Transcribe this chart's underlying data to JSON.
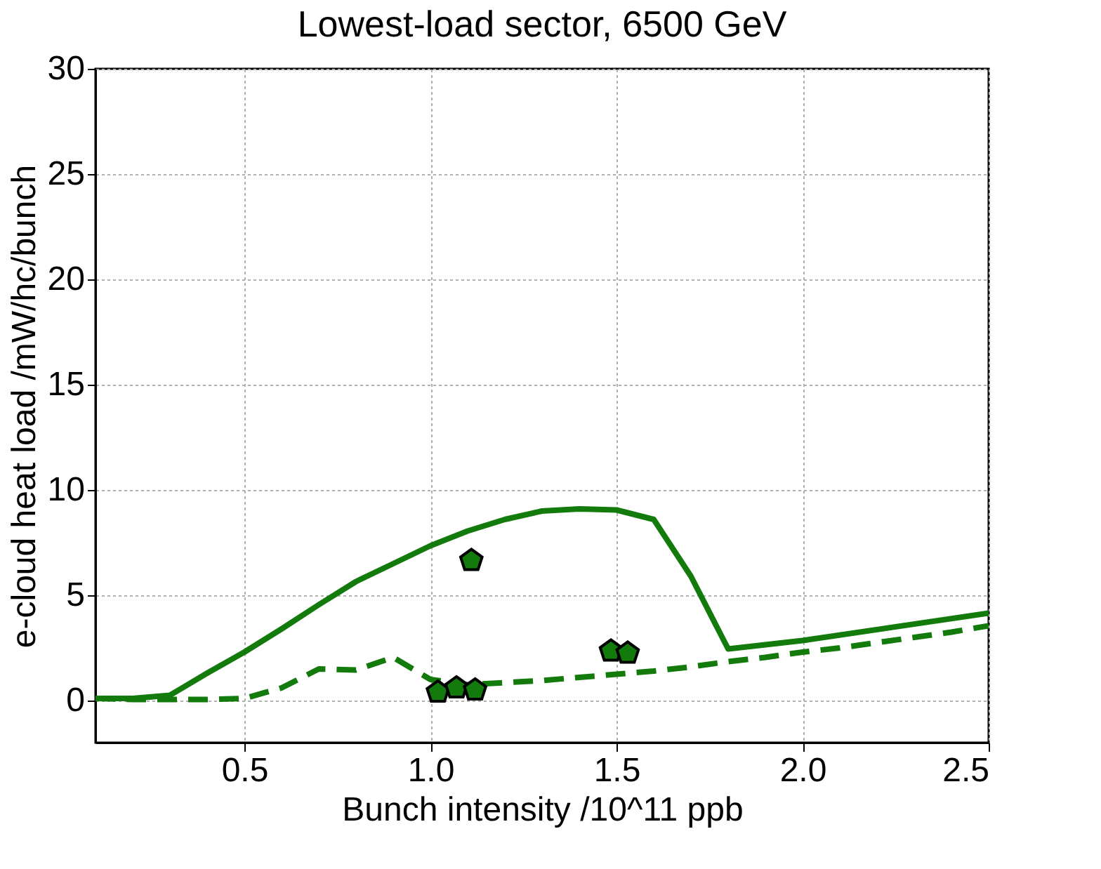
{
  "chart_data": {
    "type": "line",
    "title": "Lowest-load sector, 6500 GeV",
    "xlabel": "Bunch intensity /10^11 ppb",
    "ylabel": "e-cloud heat load /mW/hc/bunch",
    "xlim": [
      0.1,
      2.5
    ],
    "xticks": [
      {
        "value": 0.5,
        "label": "0.5"
      },
      {
        "value": 1.0,
        "label": "1.0"
      },
      {
        "value": 1.5,
        "label": "1.5"
      },
      {
        "value": 2.0,
        "label": "2.0"
      },
      {
        "value": 2.5,
        "label": "2.5"
      }
    ],
    "ylim": [
      -2,
      30
    ],
    "yticks": [
      0,
      5,
      10,
      15,
      20,
      25,
      30
    ],
    "grid": true,
    "legend": false,
    "series": [
      {
        "line_style": "solid",
        "color": "#137a0c",
        "x": [
          0.1,
          0.2,
          0.3,
          0.4,
          0.5,
          0.6,
          0.7,
          0.8,
          0.9,
          1.0,
          1.1,
          1.2,
          1.3,
          1.4,
          1.5,
          1.6,
          1.7,
          1.8,
          1.9,
          2.0,
          2.5
        ],
        "values": [
          0.1,
          0.1,
          0.25,
          1.3,
          2.3,
          3.4,
          4.55,
          5.65,
          6.5,
          7.35,
          8.05,
          8.6,
          9.0,
          9.1,
          9.05,
          8.6,
          5.9,
          2.45,
          2.65,
          2.85,
          4.15
        ]
      },
      {
        "line_style": "dashed",
        "color": "#137a0c",
        "x": [
          0.1,
          0.2,
          0.3,
          0.4,
          0.5,
          0.6,
          0.7,
          0.8,
          0.9,
          1.0,
          1.1,
          1.2,
          1.3,
          1.4,
          1.5,
          1.6,
          1.7,
          1.8,
          1.9,
          2.0,
          2.1,
          2.2,
          2.3,
          2.4,
          2.5
        ],
        "values": [
          0.1,
          0.05,
          0.05,
          0.05,
          0.1,
          0.6,
          1.5,
          1.45,
          2.05,
          1.0,
          0.75,
          0.85,
          0.95,
          1.1,
          1.25,
          1.4,
          1.6,
          1.85,
          2.05,
          2.3,
          2.5,
          2.75,
          3.0,
          3.25,
          3.55
        ]
      },
      {
        "type": "scatter",
        "color": "#137a0c",
        "x": [
          1.02,
          1.07,
          1.12,
          1.485,
          1.53,
          1.11
        ],
        "values": [
          0.4,
          0.6,
          0.5,
          2.35,
          2.25,
          6.65
        ]
      }
    ]
  }
}
